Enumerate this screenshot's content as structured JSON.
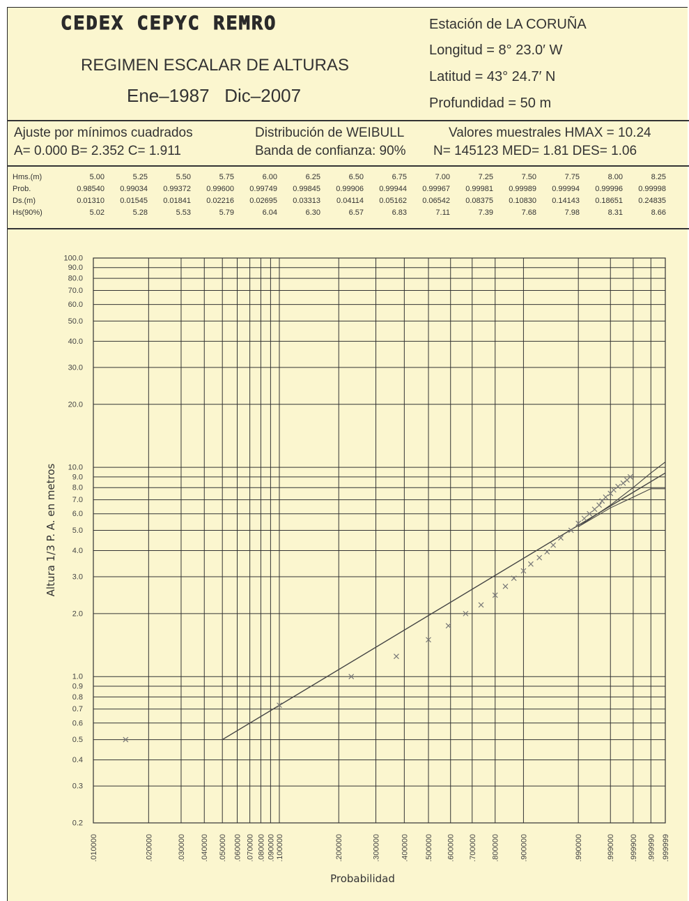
{
  "header": {
    "logo": "CEDEX CEPYC REMRO",
    "title": "REGIMEN ESCALAR DE ALTURAS",
    "period_start": "Ene–1987",
    "period_end": "Dic–2007"
  },
  "station": {
    "name": "Estación de LA CORUÑA",
    "longitude": "Longitud  = 8° 23.0′ W",
    "latitude": "Latitud   =  43° 24.7′ N",
    "depth": "Profundidad  =  50 m"
  },
  "fit": {
    "method": "Ajuste por mínimos cuadrados",
    "params": "A= 0.000  B= 2.352  C= 1.911",
    "distribution": "Distribución de WEIBULL",
    "confidence": "Banda de confianza: 90%",
    "sample": "Valores muestrales HMAX = 10.24",
    "stats": "N= 145123  MED= 1.81  DES= 1.06"
  },
  "table": {
    "rows": [
      {
        "label": "Hms.(m)",
        "values": [
          "5.00",
          "5.25",
          "5.50",
          "5.75",
          "6.00",
          "6.25",
          "6.50",
          "6.75",
          "7.00",
          "7.25",
          "7.50",
          "7.75",
          "8.00",
          "8.25"
        ]
      },
      {
        "label": "Prob.",
        "values": [
          "0.98540",
          "0.99034",
          "0.99372",
          "0.99600",
          "0.99749",
          "0.99845",
          "0.99906",
          "0.99944",
          "0.99967",
          "0.99981",
          "0.99989",
          "0.99994",
          "0.99996",
          "0.99998"
        ]
      },
      {
        "label": "Ds.(m)",
        "values": [
          "0.01310",
          "0.01545",
          "0.01841",
          "0.02216",
          "0.02695",
          "0.03313",
          "0.04114",
          "0.05162",
          "0.06542",
          "0.08375",
          "0.10830",
          "0.14143",
          "0.18651",
          "0.24835"
        ]
      },
      {
        "label": "Hs(90%)",
        "values": [
          "5.02",
          "5.28",
          "5.53",
          "5.79",
          "6.04",
          "6.30",
          "6.57",
          "6.83",
          "7.11",
          "7.39",
          "7.68",
          "7.98",
          "8.31",
          "8.66"
        ]
      }
    ]
  },
  "chart_data": {
    "type": "scatter",
    "ylabel": "Altura 1/3 P. A. en metros",
    "xlabel": "Probabilidad",
    "y_scale": "log",
    "x_scale": "weibull probability",
    "ylim": [
      0.2,
      100.0
    ],
    "xlim": [
      0.01,
      0.999999
    ],
    "y_ticks": [
      "100.0",
      "90.0",
      "80.0",
      "70.0",
      "60.0",
      "50.0",
      "40.0",
      "30.0",
      "20.0",
      "10.0",
      "9.0",
      "8.0",
      "7.0",
      "6.0",
      "5.0",
      "4.0",
      "3.0",
      "2.0",
      "1.0",
      "0.9",
      "0.8",
      "0.7",
      "0.6",
      "0.5",
      "0.4",
      "0.3",
      "0.2"
    ],
    "x_ticks": [
      {
        "label": ".010000",
        "p": 0.01
      },
      {
        "label": ".020000",
        "p": 0.02
      },
      {
        "label": ".030000",
        "p": 0.03
      },
      {
        "label": ".040000",
        "p": 0.04
      },
      {
        "label": ".050000",
        "p": 0.05
      },
      {
        "label": ".060000",
        "p": 0.06
      },
      {
        "label": ".070000",
        "p": 0.07
      },
      {
        "label": ".080000",
        "p": 0.08
      },
      {
        "label": ".090000",
        "p": 0.09
      },
      {
        "label": ".100000",
        "p": 0.1
      },
      {
        "label": ".200000",
        "p": 0.2
      },
      {
        "label": ".300000",
        "p": 0.3
      },
      {
        "label": ".400000",
        "p": 0.4
      },
      {
        "label": ".500000",
        "p": 0.5
      },
      {
        "label": ".600000",
        "p": 0.6
      },
      {
        "label": ".700000",
        "p": 0.7
      },
      {
        "label": ".800000",
        "p": 0.8
      },
      {
        "label": ".900000",
        "p": 0.9
      },
      {
        "label": ".990000",
        "p": 0.99
      },
      {
        "label": ".999000",
        "p": 0.999
      },
      {
        "label": ".999900",
        "p": 0.9999
      },
      {
        "label": ".999990",
        "p": 0.99999
      },
      {
        "label": ".999999",
        "p": 0.999999
      }
    ],
    "series": [
      {
        "points": [
          [
            0.015,
            0.5
          ],
          [
            0.1,
            0.73
          ],
          [
            0.23,
            1.0
          ],
          [
            0.37,
            1.25
          ],
          [
            0.5,
            1.5
          ],
          [
            0.59,
            1.75
          ],
          [
            0.67,
            2.0
          ],
          [
            0.74,
            2.2
          ],
          [
            0.8,
            2.45
          ],
          [
            0.84,
            2.7
          ],
          [
            0.87,
            2.95
          ],
          [
            0.9,
            3.2
          ],
          [
            0.92,
            3.45
          ],
          [
            0.94,
            3.7
          ],
          [
            0.955,
            3.95
          ],
          [
            0.965,
            4.25
          ],
          [
            0.975,
            4.6
          ],
          [
            0.985,
            5.0
          ],
          [
            0.99,
            5.4
          ],
          [
            0.993,
            5.7
          ],
          [
            0.995,
            6.0
          ],
          [
            0.9965,
            6.3
          ],
          [
            0.9975,
            6.6
          ],
          [
            0.998,
            6.9
          ],
          [
            0.9985,
            7.2
          ],
          [
            0.999,
            7.5
          ],
          [
            0.99925,
            7.8
          ],
          [
            0.9995,
            8.1
          ],
          [
            0.9997,
            8.4
          ],
          [
            0.9998,
            8.7
          ],
          [
            0.99986,
            9.0
          ]
        ]
      }
    ],
    "fit_line": {
      "from": [
        0.05,
        0.5
      ],
      "to": [
        0.999999,
        9.4
      ]
    },
    "confidence_band": {
      "upper": [
        [
          0.99,
          5.2
        ],
        [
          0.999,
          6.6
        ],
        [
          0.9999,
          8.0
        ],
        [
          0.99999,
          9.4
        ],
        [
          0.999999,
          10.6
        ]
      ],
      "lower": [
        [
          0.99,
          5.2
        ],
        [
          0.999,
          6.4
        ],
        [
          0.9999,
          7.2
        ],
        [
          0.99999,
          7.9
        ],
        [
          0.999999,
          7.9
        ]
      ]
    },
    "colors": {
      "background": "#fbf6cf",
      "grid": "#333333",
      "points": "#777777",
      "line": "#444444"
    }
  }
}
